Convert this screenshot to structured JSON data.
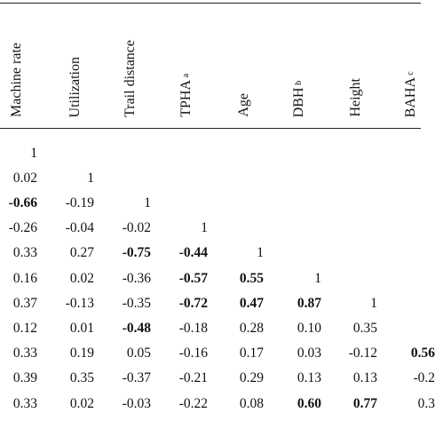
{
  "headers": [
    {
      "label": "Machine rate",
      "sup": ""
    },
    {
      "label": "Utilization",
      "sup": ""
    },
    {
      "label": "Trail distance",
      "sup": ""
    },
    {
      "label": "TPHA",
      "sup": "a"
    },
    {
      "label": "Age",
      "sup": ""
    },
    {
      "label": "DBH",
      "sup": "b"
    },
    {
      "label": "Height",
      "sup": ""
    },
    {
      "label": "BAHA",
      "sup": "c"
    }
  ],
  "rows": [
    [
      {
        "v": "1"
      }
    ],
    [
      {
        "v": "0.02"
      },
      {
        "v": "1"
      }
    ],
    [
      {
        "v": "-0.66",
        "b": true
      },
      {
        "v": "-0.19"
      },
      {
        "v": "1"
      }
    ],
    [
      {
        "v": "-0.26"
      },
      {
        "v": "-0.04"
      },
      {
        "v": "-0.02"
      },
      {
        "v": "1"
      }
    ],
    [
      {
        "v": "0.33"
      },
      {
        "v": "0.27"
      },
      {
        "v": "-0.75",
        "b": true
      },
      {
        "v": "-0.44",
        "b": true
      },
      {
        "v": "1"
      }
    ],
    [
      {
        "v": "0.16"
      },
      {
        "v": "0.02"
      },
      {
        "v": "-0.36"
      },
      {
        "v": "-0.57",
        "b": true
      },
      {
        "v": "0.55",
        "b": true
      },
      {
        "v": "1"
      }
    ],
    [
      {
        "v": "0.37"
      },
      {
        "v": "-0.13"
      },
      {
        "v": "-0.35"
      },
      {
        "v": "-0.72",
        "b": true
      },
      {
        "v": "0.47",
        "b": true
      },
      {
        "v": "0.87",
        "b": true
      },
      {
        "v": "1"
      }
    ],
    [
      {
        "v": "0.12"
      },
      {
        "v": "0.01"
      },
      {
        "v": "-0.48",
        "b": true
      },
      {
        "v": "-0.18"
      },
      {
        "v": "0.28"
      },
      {
        "v": "0.10"
      },
      {
        "v": "0.35"
      }
    ],
    [
      {
        "v": "0.33"
      },
      {
        "v": "0.19"
      },
      {
        "v": "0.05"
      },
      {
        "v": "-0.16"
      },
      {
        "v": "0.17"
      },
      {
        "v": "0.03"
      },
      {
        "v": "-0.12"
      },
      {
        "v": "0.56",
        "b": true
      }
    ],
    [
      {
        "v": "0.39"
      },
      {
        "v": "0.35"
      },
      {
        "v": "-0.37"
      },
      {
        "v": "-0.21"
      },
      {
        "v": "0.29"
      },
      {
        "v": "0.13"
      },
      {
        "v": "0.13"
      },
      {
        "v": "-0.2"
      }
    ],
    [
      {
        "v": "0.33"
      },
      {
        "v": "0.02"
      },
      {
        "v": "-0.03"
      },
      {
        "v": "-0.22"
      },
      {
        "v": "0.08"
      },
      {
        "v": "0.60",
        "b": true
      },
      {
        "v": "0.77",
        "b": true
      },
      {
        "v": "0.3"
      }
    ]
  ]
}
